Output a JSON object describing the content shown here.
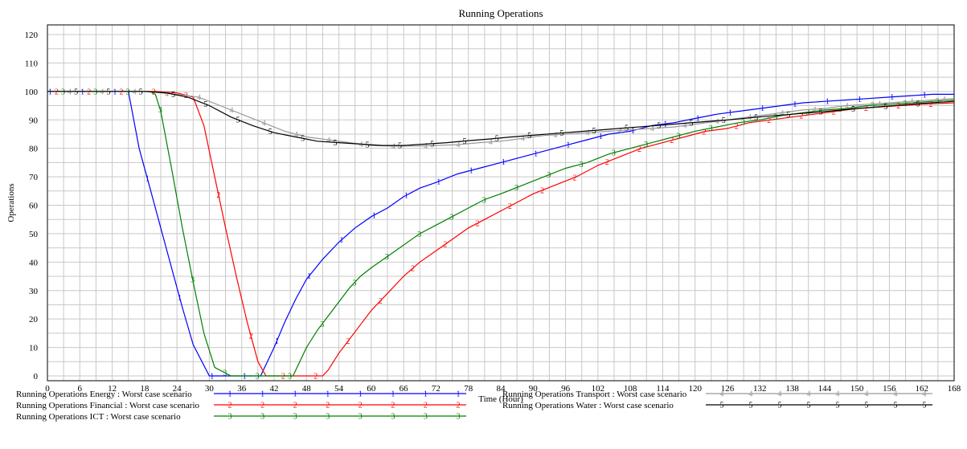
{
  "chart_data": {
    "type": "line",
    "title": "Running Operations",
    "xlabel": "Time (Hour)",
    "ylabel": "Operations",
    "xlim": [
      0,
      168
    ],
    "ylim": [
      0,
      120
    ],
    "x_ticks": [
      0,
      6,
      12,
      18,
      24,
      30,
      36,
      42,
      48,
      54,
      60,
      66,
      72,
      78,
      84,
      90,
      96,
      102,
      108,
      114,
      120,
      126,
      132,
      138,
      144,
      150,
      156,
      162,
      168
    ],
    "y_ticks": [
      0,
      10,
      20,
      30,
      40,
      50,
      60,
      70,
      80,
      90,
      100,
      110,
      120
    ],
    "grid": true,
    "legend_position": "bottom",
    "series": [
      {
        "name": "Running Operations Energy : Worst case scenario",
        "marker": "1",
        "color": "#0000ff",
        "points": [
          [
            0,
            100
          ],
          [
            15,
            100
          ],
          [
            17,
            80
          ],
          [
            19,
            66
          ],
          [
            21,
            52
          ],
          [
            23,
            38
          ],
          [
            25,
            24
          ],
          [
            27,
            11
          ],
          [
            30,
            0
          ],
          [
            32,
            0
          ],
          [
            34,
            0
          ],
          [
            36,
            0
          ],
          [
            38,
            0
          ],
          [
            39.5,
            0
          ],
          [
            40,
            2
          ],
          [
            42,
            10
          ],
          [
            44,
            19
          ],
          [
            46,
            27
          ],
          [
            48,
            34
          ],
          [
            51,
            41
          ],
          [
            54,
            47
          ],
          [
            57,
            52
          ],
          [
            60,
            56
          ],
          [
            63,
            59
          ],
          [
            66,
            63
          ],
          [
            69,
            66
          ],
          [
            72,
            68
          ],
          [
            76,
            71
          ],
          [
            80,
            73
          ],
          [
            84,
            75
          ],
          [
            88,
            77
          ],
          [
            92,
            79
          ],
          [
            96,
            81
          ],
          [
            100,
            83
          ],
          [
            104,
            85
          ],
          [
            108,
            86
          ],
          [
            112,
            88
          ],
          [
            116,
            89
          ],
          [
            120,
            90.5
          ],
          [
            124,
            92
          ],
          [
            128,
            93
          ],
          [
            132,
            94
          ],
          [
            136,
            95
          ],
          [
            140,
            96
          ],
          [
            144,
            96.5
          ],
          [
            148,
            97
          ],
          [
            152,
            97.5
          ],
          [
            156,
            98
          ],
          [
            160,
            98.5
          ],
          [
            164,
            99
          ],
          [
            168,
            99
          ]
        ]
      },
      {
        "name": "Running Operations Financial : Worst case scenario",
        "marker": "2",
        "color": "#ff0000",
        "points": [
          [
            0,
            100
          ],
          [
            15,
            100
          ],
          [
            20,
            100
          ],
          [
            24,
            99.5
          ],
          [
            27,
            98
          ],
          [
            29,
            88
          ],
          [
            31,
            70
          ],
          [
            33,
            52
          ],
          [
            35,
            35
          ],
          [
            37,
            19
          ],
          [
            39,
            5
          ],
          [
            40.5,
            0
          ],
          [
            42,
            0
          ],
          [
            44,
            0
          ],
          [
            46,
            0
          ],
          [
            48,
            0
          ],
          [
            50,
            0
          ],
          [
            51,
            0
          ],
          [
            52,
            2
          ],
          [
            54,
            8
          ],
          [
            56,
            13
          ],
          [
            58,
            18
          ],
          [
            60,
            23
          ],
          [
            63,
            29
          ],
          [
            66,
            35
          ],
          [
            69,
            40
          ],
          [
            72,
            44
          ],
          [
            75,
            48
          ],
          [
            78,
            52
          ],
          [
            81,
            55
          ],
          [
            84,
            58
          ],
          [
            87,
            61
          ],
          [
            90,
            64
          ],
          [
            94,
            67
          ],
          [
            98,
            70
          ],
          [
            102,
            74
          ],
          [
            106,
            77
          ],
          [
            110,
            80
          ],
          [
            114,
            82
          ],
          [
            118,
            84
          ],
          [
            122,
            86
          ],
          [
            126,
            87
          ],
          [
            130,
            89
          ],
          [
            134,
            90
          ],
          [
            138,
            91
          ],
          [
            142,
            92
          ],
          [
            146,
            93
          ],
          [
            150,
            94
          ],
          [
            154,
            94.5
          ],
          [
            158,
            95
          ],
          [
            162,
            95.5
          ],
          [
            168,
            96
          ]
        ]
      },
      {
        "name": "Running Operations ICT : Worst case scenario",
        "marker": "3",
        "color": "#008000",
        "points": [
          [
            0,
            100
          ],
          [
            15,
            100
          ],
          [
            19,
            100
          ],
          [
            20,
            99
          ],
          [
            21,
            93
          ],
          [
            23,
            73
          ],
          [
            25,
            52
          ],
          [
            27,
            33
          ],
          [
            29,
            15
          ],
          [
            31,
            3
          ],
          [
            34,
            0
          ],
          [
            36,
            0
          ],
          [
            38,
            0
          ],
          [
            40,
            0
          ],
          [
            42,
            0
          ],
          [
            44,
            0
          ],
          [
            45.5,
            0
          ],
          [
            46,
            2
          ],
          [
            48,
            10
          ],
          [
            50,
            16
          ],
          [
            52,
            21
          ],
          [
            54,
            26
          ],
          [
            56,
            31
          ],
          [
            58,
            35
          ],
          [
            60,
            38
          ],
          [
            63,
            42
          ],
          [
            66,
            46
          ],
          [
            69,
            50
          ],
          [
            72,
            53
          ],
          [
            75,
            56
          ],
          [
            78,
            59
          ],
          [
            81,
            62
          ],
          [
            84,
            64
          ],
          [
            88,
            67
          ],
          [
            92,
            70
          ],
          [
            96,
            73
          ],
          [
            100,
            75
          ],
          [
            104,
            78
          ],
          [
            108,
            80
          ],
          [
            112,
            82
          ],
          [
            116,
            84
          ],
          [
            120,
            86
          ],
          [
            124,
            87.5
          ],
          [
            128,
            89
          ],
          [
            132,
            90
          ],
          [
            136,
            91.5
          ],
          [
            140,
            92.5
          ],
          [
            144,
            93.5
          ],
          [
            148,
            94
          ],
          [
            152,
            95
          ],
          [
            156,
            95.5
          ],
          [
            160,
            96
          ],
          [
            164,
            96.5
          ],
          [
            168,
            97
          ]
        ]
      },
      {
        "name": "Running Operations Transport : Worst case scenario",
        "marker": "4",
        "color": "#999999",
        "points": [
          [
            0,
            100
          ],
          [
            18,
            100
          ],
          [
            24,
            99
          ],
          [
            28,
            98
          ],
          [
            32,
            95
          ],
          [
            36,
            92
          ],
          [
            40,
            89
          ],
          [
            44,
            86
          ],
          [
            48,
            84
          ],
          [
            52,
            83
          ],
          [
            56,
            82
          ],
          [
            60,
            81
          ],
          [
            64,
            80.8
          ],
          [
            68,
            80.8
          ],
          [
            72,
            81
          ],
          [
            76,
            81.3
          ],
          [
            80,
            82
          ],
          [
            84,
            82.5
          ],
          [
            88,
            83.5
          ],
          [
            92,
            84.5
          ],
          [
            96,
            85
          ],
          [
            100,
            85.5
          ],
          [
            104,
            86
          ],
          [
            108,
            86.5
          ],
          [
            112,
            87
          ],
          [
            116,
            87.5
          ],
          [
            120,
            88.5
          ],
          [
            124,
            89.5
          ],
          [
            128,
            90.5
          ],
          [
            132,
            91.5
          ],
          [
            136,
            92.5
          ],
          [
            140,
            93.5
          ],
          [
            144,
            94
          ],
          [
            148,
            95
          ],
          [
            152,
            95.5
          ],
          [
            156,
            96
          ],
          [
            160,
            96.5
          ],
          [
            164,
            97
          ],
          [
            168,
            97.5
          ]
        ]
      },
      {
        "name": "Running Operations Water : Worst case scenario",
        "marker": "5",
        "color": "#000000",
        "points": [
          [
            0,
            100
          ],
          [
            18,
            100
          ],
          [
            22,
            99.5
          ],
          [
            26,
            98
          ],
          [
            30,
            95
          ],
          [
            34,
            91
          ],
          [
            38,
            88
          ],
          [
            42,
            85.5
          ],
          [
            46,
            84
          ],
          [
            50,
            82.5
          ],
          [
            54,
            82
          ],
          [
            58,
            81.5
          ],
          [
            62,
            81
          ],
          [
            66,
            81
          ],
          [
            70,
            81.5
          ],
          [
            74,
            82
          ],
          [
            78,
            82.7
          ],
          [
            82,
            83.3
          ],
          [
            86,
            84
          ],
          [
            90,
            84.6
          ],
          [
            94,
            85.2
          ],
          [
            98,
            85.8
          ],
          [
            102,
            86.4
          ],
          [
            106,
            87
          ],
          [
            110,
            87.6
          ],
          [
            114,
            88.2
          ],
          [
            118,
            88.8
          ],
          [
            122,
            89.4
          ],
          [
            126,
            90
          ],
          [
            130,
            90.7
          ],
          [
            134,
            91.4
          ],
          [
            138,
            92
          ],
          [
            142,
            92.6
          ],
          [
            146,
            93.3
          ],
          [
            150,
            94
          ],
          [
            154,
            94.6
          ],
          [
            158,
            95.2
          ],
          [
            162,
            95.8
          ],
          [
            168,
            96.5
          ]
        ]
      }
    ]
  }
}
